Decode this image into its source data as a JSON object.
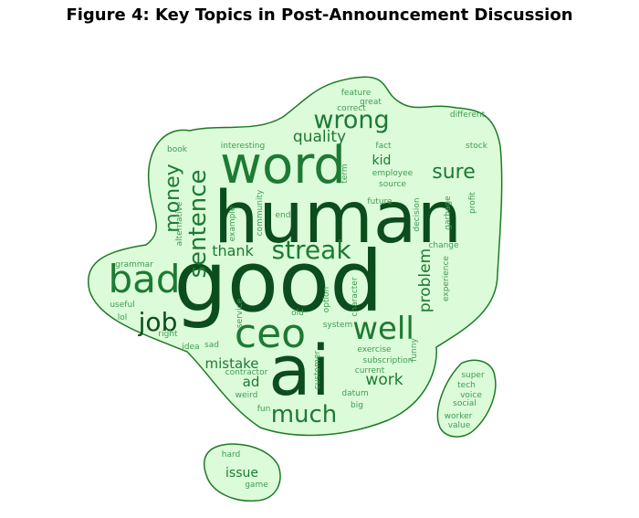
{
  "title": "Figure 4: Key Topics in Post-Announcement Discussion",
  "colors": {
    "fill": "#dcfbd8",
    "outline": "#1e7a26",
    "dark": "#0b4d1c",
    "mid": "#1c7a34",
    "light": "#3f9c55",
    "pale": "#66b577"
  },
  "words": [
    {
      "text": "good",
      "shade": "dark"
    },
    {
      "text": "human",
      "shade": "dark"
    },
    {
      "text": "ai",
      "shade": "dark"
    },
    {
      "text": "word",
      "shade": "mid"
    },
    {
      "text": "ceo",
      "shade": "mid"
    },
    {
      "text": "bad",
      "shade": "mid"
    },
    {
      "text": "well",
      "shade": "mid"
    },
    {
      "text": "streak",
      "shade": "mid"
    },
    {
      "text": "job",
      "shade": "dark"
    },
    {
      "text": "much",
      "shade": "mid"
    },
    {
      "text": "wrong",
      "shade": "mid"
    },
    {
      "text": "sentence",
      "shade": "mid"
    },
    {
      "text": "money",
      "shade": "mid"
    },
    {
      "text": "sure",
      "shade": "mid"
    },
    {
      "text": "quality",
      "shade": "mid"
    },
    {
      "text": "problem",
      "shade": "mid"
    },
    {
      "text": "work",
      "shade": "mid"
    },
    {
      "text": "thank",
      "shade": "mid"
    },
    {
      "text": "mistake",
      "shade": "mid"
    },
    {
      "text": "kid",
      "shade": "mid"
    },
    {
      "text": "ad",
      "shade": "mid"
    },
    {
      "text": "issue",
      "shade": "mid"
    },
    {
      "text": "feature",
      "shade": "light"
    },
    {
      "text": "great",
      "shade": "light"
    },
    {
      "text": "correct",
      "shade": "light"
    },
    {
      "text": "different",
      "shade": "light"
    },
    {
      "text": "fact",
      "shade": "light"
    },
    {
      "text": "book",
      "shade": "light"
    },
    {
      "text": "interesting",
      "shade": "light"
    },
    {
      "text": "stock",
      "shade": "light"
    },
    {
      "text": "employee",
      "shade": "light"
    },
    {
      "text": "source",
      "shade": "light"
    },
    {
      "text": "term",
      "shade": "light"
    },
    {
      "text": "profit",
      "shade": "light"
    },
    {
      "text": "alternative",
      "shade": "light"
    },
    {
      "text": "example",
      "shade": "light"
    },
    {
      "text": "community",
      "shade": "light"
    },
    {
      "text": "end",
      "shade": "light"
    },
    {
      "text": "future",
      "shade": "light"
    },
    {
      "text": "decision",
      "shade": "light"
    },
    {
      "text": "garbage",
      "shade": "light"
    },
    {
      "text": "change",
      "shade": "light"
    },
    {
      "text": "grammar",
      "shade": "light"
    },
    {
      "text": "useful",
      "shade": "light"
    },
    {
      "text": "lol",
      "shade": "light"
    },
    {
      "text": "right",
      "shade": "light"
    },
    {
      "text": "service",
      "shade": "light"
    },
    {
      "text": "old",
      "shade": "light"
    },
    {
      "text": "option",
      "shade": "light"
    },
    {
      "text": "character",
      "shade": "light"
    },
    {
      "text": "experience",
      "shade": "light"
    },
    {
      "text": "system",
      "shade": "light"
    },
    {
      "text": "idea",
      "shade": "light"
    },
    {
      "text": "sad",
      "shade": "light"
    },
    {
      "text": "exercise",
      "shade": "light"
    },
    {
      "text": "funny",
      "shade": "light"
    },
    {
      "text": "subscription",
      "shade": "light"
    },
    {
      "text": "customer",
      "shade": "light"
    },
    {
      "text": "current",
      "shade": "light"
    },
    {
      "text": "contractor",
      "shade": "light"
    },
    {
      "text": "weird",
      "shade": "light"
    },
    {
      "text": "fun",
      "shade": "light"
    },
    {
      "text": "datum",
      "shade": "light"
    },
    {
      "text": "big",
      "shade": "light"
    },
    {
      "text": "super",
      "shade": "light"
    },
    {
      "text": "tech",
      "shade": "light"
    },
    {
      "text": "voice",
      "shade": "light"
    },
    {
      "text": "social",
      "shade": "light"
    },
    {
      "text": "worker",
      "shade": "light"
    },
    {
      "text": "value",
      "shade": "light"
    },
    {
      "text": "hard",
      "shade": "light"
    },
    {
      "text": "game",
      "shade": "light"
    }
  ]
}
